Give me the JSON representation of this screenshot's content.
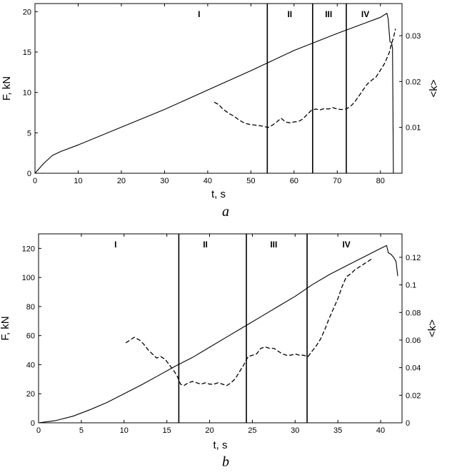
{
  "chart_data": [
    {
      "panel": "a",
      "type": "line",
      "xlabel": "t, s",
      "ylabel": "F, kN",
      "y2label": "<k>",
      "xlim": [
        0,
        85
      ],
      "ylim": [
        0,
        21
      ],
      "y2lim": [
        0,
        0.037
      ],
      "xticks": [
        0,
        10,
        20,
        30,
        40,
        50,
        60,
        70,
        80
      ],
      "yticks": [
        0,
        5,
        10,
        15,
        20
      ],
      "y2ticks": [
        0.01,
        0.02,
        0.03
      ],
      "y2ticklabels": [
        "0.01",
        "0.02",
        "0.03"
      ],
      "grid": false,
      "region_boundaries": [
        53.8,
        64.3,
        72.1
      ],
      "regions": [
        {
          "label": "I",
          "x": 38
        },
        {
          "label": "II",
          "x": 59
        },
        {
          "label": "III",
          "x": 68
        },
        {
          "label": "IV",
          "x": 76.5
        }
      ],
      "series": [
        {
          "axis": "left",
          "style": "solid",
          "x": [
            0,
            2,
            4,
            6,
            10,
            20,
            30,
            40,
            50,
            60,
            70,
            80,
            81.5,
            81.8,
            82.2,
            82.6,
            82.8,
            83.0,
            83.0
          ],
          "y": [
            0,
            1.2,
            2.2,
            2.7,
            3.5,
            5.7,
            7.9,
            10.3,
            12.7,
            15.2,
            17.3,
            19.3,
            19.8,
            19.1,
            16.3,
            16.1,
            15.5,
            0.1,
            0
          ]
        },
        {
          "axis": "right",
          "style": "dashed",
          "x": [
            41.5,
            42.5,
            43.5,
            45,
            46,
            47,
            48,
            49,
            50,
            51,
            52,
            53,
            54,
            55,
            56,
            57,
            58,
            59,
            60,
            61,
            62,
            63,
            64,
            65,
            66,
            67,
            68,
            69,
            70,
            71,
            72,
            73,
            74,
            75,
            76,
            77,
            78,
            79,
            80,
            81,
            82,
            82.5,
            83,
            83.5
          ],
          "y": [
            0.0155,
            0.015,
            0.014,
            0.013,
            0.0125,
            0.0118,
            0.0112,
            0.0108,
            0.0106,
            0.0105,
            0.0104,
            0.0102,
            0.01,
            0.0105,
            0.0112,
            0.012,
            0.0112,
            0.011,
            0.0112,
            0.0113,
            0.0118,
            0.0128,
            0.0137,
            0.014,
            0.0138,
            0.0141,
            0.014,
            0.0143,
            0.014,
            0.0139,
            0.014,
            0.0145,
            0.0155,
            0.0168,
            0.0182,
            0.0195,
            0.0203,
            0.021,
            0.0225,
            0.024,
            0.0262,
            0.028,
            0.0295,
            0.0315
          ]
        }
      ]
    },
    {
      "panel": "b",
      "type": "line",
      "xlabel": "t, s",
      "ylabel": "F, kN",
      "y2label": "<k>",
      "xlim": [
        0,
        42.5
      ],
      "ylim": [
        0,
        130
      ],
      "y2lim": [
        0,
        0.137
      ],
      "xticks": [
        0,
        5,
        10,
        15,
        20,
        25,
        30,
        35,
        40
      ],
      "yticks": [
        0,
        20,
        40,
        60,
        80,
        100,
        120
      ],
      "y2ticks": [
        0,
        0.02,
        0.04,
        0.06,
        0.08,
        0.1,
        0.12
      ],
      "y2ticklabels": [
        "0",
        "0.02",
        "0.04",
        "0.06",
        "0.08",
        "0.1",
        "0.12"
      ],
      "grid": false,
      "region_boundaries": [
        16.4,
        24.3,
        31.4
      ],
      "regions": [
        {
          "label": "I",
          "x": 9
        },
        {
          "label": "II",
          "x": 19.5
        },
        {
          "label": "III",
          "x": 27.5
        },
        {
          "label": "IV",
          "x": 36
        }
      ],
      "series": [
        {
          "axis": "left",
          "style": "solid",
          "x": [
            0,
            2,
            4,
            6,
            8,
            10,
            12,
            14,
            16,
            18,
            20,
            22,
            24,
            26,
            28,
            30,
            32,
            34,
            36,
            38,
            40,
            40.7,
            40.9,
            41.2,
            41.5,
            41.8,
            42.0
          ],
          "y": [
            0,
            1.5,
            4.5,
            9,
            14,
            20,
            26,
            32.5,
            39,
            45,
            52,
            59,
            66,
            73,
            80,
            87,
            95,
            102,
            108,
            114,
            120,
            122,
            117,
            116,
            114,
            111,
            101
          ]
        },
        {
          "axis": "right",
          "style": "dashed",
          "x": [
            10.2,
            10.7,
            11.2,
            11.8,
            12.3,
            12.8,
            13.3,
            13.8,
            14.3,
            14.8,
            15.3,
            15.8,
            16.2,
            16.6,
            17.0,
            17.5,
            18.0,
            18.5,
            19.0,
            19.5,
            20.0,
            20.5,
            21.0,
            21.5,
            22.0,
            22.5,
            23.0,
            23.5,
            24.0,
            24.5,
            25.0,
            25.5,
            26.0,
            26.5,
            27.0,
            27.5,
            28.0,
            28.5,
            29.0,
            29.5,
            30.0,
            30.5,
            31.0,
            31.5,
            32.0,
            32.5,
            33.0,
            33.5,
            34.0,
            34.5,
            35.0,
            35.5,
            36.0,
            36.5,
            37.0,
            37.5,
            38.0,
            38.5,
            39.0
          ],
          "y": [
            0.058,
            0.06,
            0.062,
            0.06,
            0.057,
            0.053,
            0.05,
            0.047,
            0.048,
            0.046,
            0.042,
            0.038,
            0.034,
            0.028,
            0.027,
            0.029,
            0.03,
            0.029,
            0.028,
            0.029,
            0.028,
            0.028,
            0.029,
            0.028,
            0.027,
            0.029,
            0.032,
            0.037,
            0.042,
            0.048,
            0.049,
            0.05,
            0.054,
            0.055,
            0.054,
            0.054,
            0.052,
            0.05,
            0.049,
            0.049,
            0.05,
            0.049,
            0.049,
            0.048,
            0.052,
            0.056,
            0.061,
            0.068,
            0.076,
            0.083,
            0.09,
            0.099,
            0.106,
            0.108,
            0.111,
            0.113,
            0.115,
            0.117,
            0.119
          ]
        }
      ]
    }
  ],
  "panel_letters": [
    "a",
    "b"
  ]
}
